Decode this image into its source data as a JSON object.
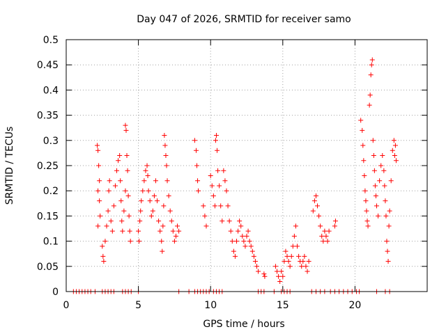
{
  "chart_data": {
    "type": "scatter",
    "title": "Day 047 of 2026, SRMTID for receiver samo",
    "xlabel": "GPS time / hours",
    "ylabel": "SRMTID / TECUs",
    "xlim": [
      0,
      25
    ],
    "ylim": [
      0,
      0.5
    ],
    "xticks": [
      0,
      5,
      10,
      15,
      20
    ],
    "xtick_labels": [
      "0",
      "5",
      "10",
      "15",
      "20"
    ],
    "yticks": [
      0,
      0.05,
      0.1,
      0.15,
      0.2,
      0.25,
      0.3,
      0.35,
      0.4,
      0.45,
      0.5
    ],
    "ytick_labels": [
      "0",
      "0.05",
      "0.1",
      "0.15",
      "0.2",
      "0.25",
      "0.3",
      "0.35",
      "0.4",
      "0.45",
      "0.5"
    ],
    "grid": true,
    "marker": "plus",
    "color": "#ff0000",
    "series": [
      {
        "name": "SRMTID",
        "points": [
          [
            0.5,
            0
          ],
          [
            0.7,
            0
          ],
          [
            0.9,
            0
          ],
          [
            1.1,
            0
          ],
          [
            1.3,
            0
          ],
          [
            1.5,
            0
          ],
          [
            1.7,
            0
          ],
          [
            2.0,
            0
          ],
          [
            2.5,
            0
          ],
          [
            2.7,
            0
          ],
          [
            2.9,
            0
          ],
          [
            3.1,
            0
          ],
          [
            3.3,
            0
          ],
          [
            3.9,
            0
          ],
          [
            4.1,
            0
          ],
          [
            4.3,
            0
          ],
          [
            4.5,
            0
          ],
          [
            5.0,
            0
          ],
          [
            7.8,
            0
          ],
          [
            8.5,
            0
          ],
          [
            8.9,
            0
          ],
          [
            9.1,
            0
          ],
          [
            9.3,
            0
          ],
          [
            9.5,
            0
          ],
          [
            9.7,
            0
          ],
          [
            9.9,
            0
          ],
          [
            10.2,
            0
          ],
          [
            10.4,
            0
          ],
          [
            10.6,
            0
          ],
          [
            10.8,
            0
          ],
          [
            13.3,
            0
          ],
          [
            13.5,
            0
          ],
          [
            13.7,
            0
          ],
          [
            14.4,
            0
          ],
          [
            14.9,
            0
          ],
          [
            15.1,
            0
          ],
          [
            15.3,
            0
          ],
          [
            15.5,
            0
          ],
          [
            17.0,
            0
          ],
          [
            17.3,
            0
          ],
          [
            17.6,
            0
          ],
          [
            17.9,
            0
          ],
          [
            18.3,
            0
          ],
          [
            18.6,
            0
          ],
          [
            18.9,
            0
          ],
          [
            19.2,
            0
          ],
          [
            19.5,
            0
          ],
          [
            19.8,
            0
          ],
          [
            20.1,
            0
          ],
          [
            20.3,
            0
          ],
          [
            21.5,
            0
          ],
          [
            22.1,
            0
          ],
          [
            22.4,
            0
          ],
          [
            2.15,
            0.29
          ],
          [
            2.2,
            0.28
          ],
          [
            2.25,
            0.25
          ],
          [
            2.3,
            0.22
          ],
          [
            2.2,
            0.2
          ],
          [
            2.3,
            0.18
          ],
          [
            2.35,
            0.15
          ],
          [
            2.2,
            0.13
          ],
          [
            2.5,
            0.09
          ],
          [
            2.55,
            0.07
          ],
          [
            2.6,
            0.06
          ],
          [
            2.7,
            0.1
          ],
          [
            2.8,
            0.13
          ],
          [
            2.9,
            0.16
          ],
          [
            2.95,
            0.2
          ],
          [
            3.0,
            0.22
          ],
          [
            3.1,
            0.14
          ],
          [
            3.2,
            0.12
          ],
          [
            3.3,
            0.17
          ],
          [
            3.4,
            0.21
          ],
          [
            3.5,
            0.24
          ],
          [
            3.6,
            0.26
          ],
          [
            3.7,
            0.27
          ],
          [
            3.75,
            0.22
          ],
          [
            3.8,
            0.18
          ],
          [
            3.85,
            0.14
          ],
          [
            3.9,
            0.12
          ],
          [
            4.0,
            0.16
          ],
          [
            4.1,
            0.2
          ],
          [
            4.1,
            0.33
          ],
          [
            4.15,
            0.32
          ],
          [
            4.2,
            0.27
          ],
          [
            4.25,
            0.24
          ],
          [
            4.3,
            0.19
          ],
          [
            4.35,
            0.15
          ],
          [
            4.4,
            0.12
          ],
          [
            4.45,
            0.1
          ],
          [
            5.0,
            0.12
          ],
          [
            5.05,
            0.1
          ],
          [
            5.1,
            0.14
          ],
          [
            5.15,
            0.16
          ],
          [
            5.2,
            0.18
          ],
          [
            5.3,
            0.2
          ],
          [
            5.4,
            0.22
          ],
          [
            5.5,
            0.24
          ],
          [
            5.6,
            0.25
          ],
          [
            5.65,
            0.23
          ],
          [
            5.7,
            0.2
          ],
          [
            5.8,
            0.18
          ],
          [
            5.9,
            0.15
          ],
          [
            6.0,
            0.16
          ],
          [
            6.1,
            0.19
          ],
          [
            6.2,
            0.22
          ],
          [
            6.3,
            0.18
          ],
          [
            6.4,
            0.14
          ],
          [
            6.5,
            0.12
          ],
          [
            6.6,
            0.1
          ],
          [
            6.65,
            0.08
          ],
          [
            6.7,
            0.13
          ],
          [
            6.75,
            0.17
          ],
          [
            6.8,
            0.31
          ],
          [
            6.85,
            0.29
          ],
          [
            6.9,
            0.27
          ],
          [
            6.95,
            0.25
          ],
          [
            7.0,
            0.22
          ],
          [
            7.1,
            0.19
          ],
          [
            7.2,
            0.16
          ],
          [
            7.3,
            0.14
          ],
          [
            7.4,
            0.12
          ],
          [
            7.5,
            0.1
          ],
          [
            7.6,
            0.11
          ],
          [
            7.7,
            0.13
          ],
          [
            7.8,
            0.12
          ],
          [
            8.9,
            0.3
          ],
          [
            9.0,
            0.28
          ],
          [
            9.05,
            0.25
          ],
          [
            9.1,
            0.22
          ],
          [
            9.15,
            0.2
          ],
          [
            9.5,
            0.17
          ],
          [
            9.6,
            0.15
          ],
          [
            9.7,
            0.13
          ],
          [
            10.0,
            0.23
          ],
          [
            10.1,
            0.21
          ],
          [
            10.2,
            0.19
          ],
          [
            10.3,
            0.17
          ],
          [
            10.35,
            0.3
          ],
          [
            10.4,
            0.31
          ],
          [
            10.45,
            0.28
          ],
          [
            10.5,
            0.24
          ],
          [
            10.6,
            0.21
          ],
          [
            10.7,
            0.17
          ],
          [
            10.8,
            0.14
          ],
          [
            10.9,
            0.24
          ],
          [
            11.0,
            0.22
          ],
          [
            11.1,
            0.2
          ],
          [
            11.2,
            0.17
          ],
          [
            11.3,
            0.14
          ],
          [
            11.4,
            0.12
          ],
          [
            11.5,
            0.1
          ],
          [
            11.6,
            0.08
          ],
          [
            11.7,
            0.07
          ],
          [
            11.8,
            0.1
          ],
          [
            11.9,
            0.12
          ],
          [
            12.0,
            0.14
          ],
          [
            12.1,
            0.13
          ],
          [
            12.2,
            0.11
          ],
          [
            12.3,
            0.1
          ],
          [
            12.4,
            0.09
          ],
          [
            12.5,
            0.11
          ],
          [
            12.6,
            0.12
          ],
          [
            12.7,
            0.1
          ],
          [
            12.8,
            0.09
          ],
          [
            12.9,
            0.08
          ],
          [
            13.0,
            0.07
          ],
          [
            13.1,
            0.06
          ],
          [
            13.2,
            0.05
          ],
          [
            13.3,
            0.04
          ],
          [
            13.7,
            0.035
          ],
          [
            13.75,
            0.03
          ],
          [
            14.5,
            0.05
          ],
          [
            14.6,
            0.04
          ],
          [
            14.7,
            0.03
          ],
          [
            14.8,
            0.02
          ],
          [
            14.9,
            0.04
          ],
          [
            15.0,
            0.03
          ],
          [
            15.1,
            0.06
          ],
          [
            15.2,
            0.08
          ],
          [
            15.3,
            0.07
          ],
          [
            15.4,
            0.06
          ],
          [
            15.5,
            0.05
          ],
          [
            15.6,
            0.07
          ],
          [
            15.7,
            0.09
          ],
          [
            15.8,
            0.11
          ],
          [
            15.9,
            0.13
          ],
          [
            16.0,
            0.09
          ],
          [
            16.1,
            0.07
          ],
          [
            16.2,
            0.06
          ],
          [
            16.3,
            0.05
          ],
          [
            16.4,
            0.06
          ],
          [
            16.5,
            0.07
          ],
          [
            16.6,
            0.05
          ],
          [
            16.7,
            0.04
          ],
          [
            16.8,
            0.06
          ],
          [
            17.1,
            0.16
          ],
          [
            17.2,
            0.18
          ],
          [
            17.3,
            0.19
          ],
          [
            17.4,
            0.17
          ],
          [
            17.5,
            0.15
          ],
          [
            17.6,
            0.13
          ],
          [
            17.7,
            0.11
          ],
          [
            17.8,
            0.1
          ],
          [
            17.9,
            0.12
          ],
          [
            18.0,
            0.11
          ],
          [
            18.1,
            0.1
          ],
          [
            18.2,
            0.12
          ],
          [
            18.6,
            0.13
          ],
          [
            18.65,
            0.14
          ],
          [
            20.4,
            0.34
          ],
          [
            20.5,
            0.32
          ],
          [
            20.55,
            0.29
          ],
          [
            20.6,
            0.26
          ],
          [
            20.65,
            0.23
          ],
          [
            20.7,
            0.2
          ],
          [
            20.75,
            0.18
          ],
          [
            20.8,
            0.16
          ],
          [
            20.85,
            0.14
          ],
          [
            20.9,
            0.13
          ],
          [
            21.0,
            0.37
          ],
          [
            21.05,
            0.39
          ],
          [
            21.1,
            0.43
          ],
          [
            21.15,
            0.45
          ],
          [
            21.2,
            0.46
          ],
          [
            21.25,
            0.3
          ],
          [
            21.3,
            0.27
          ],
          [
            21.35,
            0.24
          ],
          [
            21.4,
            0.21
          ],
          [
            21.45,
            0.19
          ],
          [
            21.5,
            0.17
          ],
          [
            21.6,
            0.15
          ],
          [
            21.7,
            0.22
          ],
          [
            21.8,
            0.25
          ],
          [
            21.9,
            0.27
          ],
          [
            22.0,
            0.24
          ],
          [
            22.05,
            0.21
          ],
          [
            22.1,
            0.18
          ],
          [
            22.15,
            0.15
          ],
          [
            22.2,
            0.1
          ],
          [
            22.25,
            0.08
          ],
          [
            22.3,
            0.06
          ],
          [
            22.35,
            0.13
          ],
          [
            22.4,
            0.16
          ],
          [
            22.5,
            0.22
          ],
          [
            22.6,
            0.28
          ],
          [
            22.7,
            0.3
          ],
          [
            22.75,
            0.27
          ],
          [
            22.8,
            0.29
          ],
          [
            22.85,
            0.26
          ]
        ]
      }
    ]
  }
}
